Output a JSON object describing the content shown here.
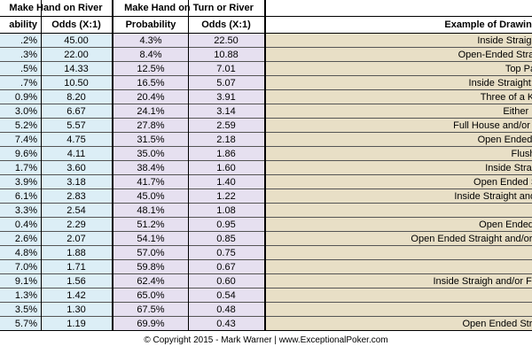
{
  "header": {
    "group_river": "Make Hand on River",
    "group_turn_river": "Make Hand on Turn or River"
  },
  "columns": [
    "ability",
    "Odds (X:1)",
    "Probability",
    "Odds (X:1)",
    "Example of Drawing Situation (i.e."
  ],
  "table": {
    "rows": [
      [
        ".2%",
        "45.00",
        "4.3%",
        "22.50",
        "Inside Straight Flush;"
      ],
      [
        ".3%",
        "22.00",
        "8.4%",
        "10.88",
        "Open-Ended Straight Flush; S"
      ],
      [
        ".5%",
        "14.33",
        "12.5%",
        "7.01",
        "Top Pair"
      ],
      [
        ".7%",
        "10.50",
        "16.5%",
        "5.07",
        "Inside Straight; Full Hous"
      ],
      [
        "0.9%",
        "8.20",
        "20.4%",
        "3.91",
        "Three of a Kind and"
      ],
      [
        "3.0%",
        "6.67",
        "24.1%",
        "3.14",
        "Either Pa"
      ],
      [
        "5.2%",
        "5.57",
        "27.8%",
        "2.59",
        "Full House and/or Quads; Inside"
      ],
      [
        "7.4%",
        "4.75",
        "31.5%",
        "2.18",
        "Open Ended Straight"
      ],
      [
        "9.6%",
        "4.11",
        "35.0%",
        "1.86",
        "Flush"
      ],
      [
        "1.7%",
        "3.60",
        "38.4%",
        "1.60",
        "Inside Straight an"
      ],
      [
        "3.9%",
        "3.18",
        "41.7%",
        "1.40",
        "Open Ended Straight a"
      ],
      [
        "6.1%",
        "2.83",
        "45.0%",
        "1.22",
        "Inside Straight and/or Flush; Ins"
      ],
      [
        "3.3%",
        "2.54",
        "48.1%",
        "1.08",
        null
      ],
      [
        "0.4%",
        "2.29",
        "51.2%",
        "0.95",
        "Open Ended Straigh"
      ],
      [
        "2.6%",
        "2.07",
        "54.1%",
        "0.85",
        "Open Ended Straight and/or Flush; Flush and/or Pai"
      ],
      [
        "4.8%",
        "1.88",
        "57.0%",
        "0.75",
        null
      ],
      [
        "7.0%",
        "1.71",
        "59.8%",
        "0.67",
        null
      ],
      [
        "9.1%",
        "1.56",
        "62.4%",
        "0.60",
        "Inside Straigh and/or Flush and/or Pair; O"
      ],
      [
        "1.3%",
        "1.42",
        "65.0%",
        "0.54",
        null
      ],
      [
        "3.5%",
        "1.30",
        "67.5%",
        "0.48",
        null
      ],
      [
        "5.7%",
        "1.19",
        "69.9%",
        "0.43",
        "Open Ended Straight and/or"
      ]
    ]
  },
  "footer": "© Copyright 2015 - Mark Warner | www.ExceptionalPoker.com"
}
